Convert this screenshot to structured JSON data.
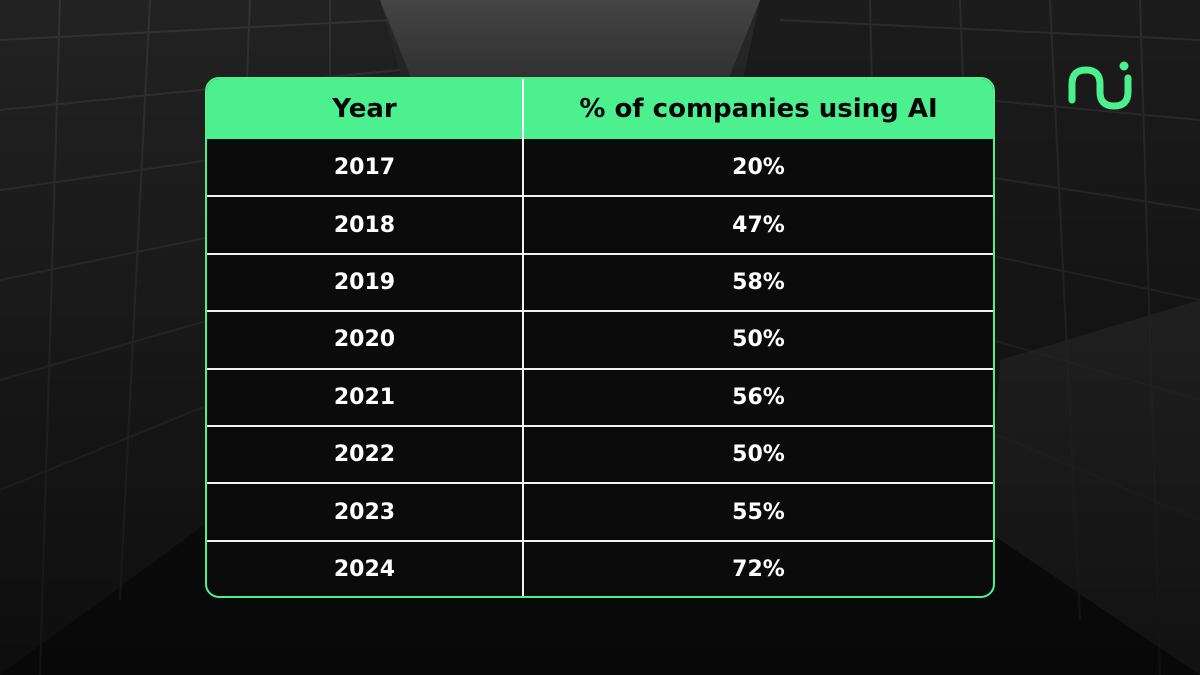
{
  "colors": {
    "accent": "#4cf08f",
    "cell_background": "#0b0b0b",
    "text": "#ffffff",
    "header_text": "#050505"
  },
  "logo": {
    "icon": "brand-logo-icon"
  },
  "chart_data": {
    "type": "table",
    "columns": [
      "Year",
      "% of companies using AI"
    ],
    "rows": [
      [
        "2017",
        "20%"
      ],
      [
        "2018",
        "47%"
      ],
      [
        "2019",
        "58%"
      ],
      [
        "2020",
        "50%"
      ],
      [
        "2021",
        "56%"
      ],
      [
        "2022",
        "50%"
      ],
      [
        "2023",
        "55%"
      ],
      [
        "2024",
        "72%"
      ]
    ]
  }
}
